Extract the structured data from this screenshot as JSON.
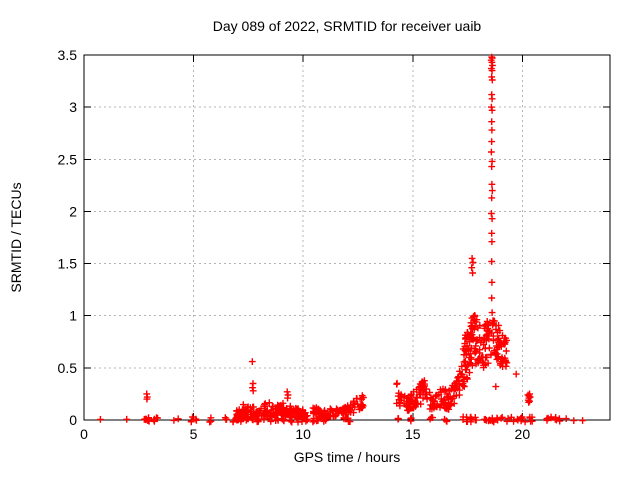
{
  "chart_data": {
    "type": "scatter",
    "title": "Day 089 of 2022, SRMTID for receiver uaib",
    "xlabel": "GPS time / hours",
    "ylabel": "SRMTID / TECUs",
    "xlim": [
      0,
      24
    ],
    "ylim": [
      0,
      3.5
    ],
    "x_ticks": [
      0,
      5,
      10,
      15,
      20
    ],
    "y_ticks": [
      0,
      0.5,
      1,
      1.5,
      2,
      2.5,
      3,
      3.5
    ],
    "grid": true,
    "legend": "none",
    "marker": {
      "shape": "plus",
      "color": "#ff0000",
      "size": 3.4,
      "stroke_width": 1.4
    },
    "colors": {
      "marker": "#ff0000",
      "grid": "#b4b4b4",
      "border": "#000000",
      "text": "#000000",
      "background": "#ffffff"
    },
    "seed": 11,
    "feature_points": [
      [
        2.86,
        0.25
      ],
      [
        2.89,
        0.22
      ],
      [
        2.87,
        0.2
      ],
      [
        7.68,
        0.56
      ],
      [
        7.71,
        0.35
      ],
      [
        7.69,
        0.31
      ],
      [
        7.72,
        0.28
      ],
      [
        9.27,
        0.27
      ],
      [
        9.31,
        0.24
      ],
      [
        9.29,
        0.21
      ],
      [
        17.71,
        1.55
      ],
      [
        17.75,
        1.51
      ],
      [
        17.69,
        1.46
      ],
      [
        17.73,
        1.41
      ],
      [
        17.49,
        0.84
      ],
      [
        17.52,
        0.82
      ],
      [
        17.5,
        0.8
      ],
      [
        18.6,
        3.48
      ],
      [
        18.63,
        3.47
      ],
      [
        18.58,
        3.45
      ],
      [
        18.61,
        3.43
      ],
      [
        18.64,
        3.4
      ],
      [
        18.59,
        3.37
      ],
      [
        18.62,
        3.35
      ],
      [
        18.6,
        3.29
      ],
      [
        18.63,
        3.26
      ],
      [
        18.6,
        3.12
      ],
      [
        18.62,
        3.08
      ],
      [
        18.59,
        3.0
      ],
      [
        18.62,
        2.97
      ],
      [
        18.6,
        2.86
      ],
      [
        18.61,
        2.78
      ],
      [
        18.6,
        2.67
      ],
      [
        18.59,
        2.57
      ],
      [
        18.62,
        2.48
      ],
      [
        18.6,
        2.43
      ],
      [
        18.61,
        2.26
      ],
      [
        18.63,
        2.2
      ],
      [
        18.6,
        2.13
      ],
      [
        18.59,
        1.98
      ],
      [
        18.62,
        1.93
      ],
      [
        18.6,
        1.79
      ],
      [
        18.61,
        1.71
      ],
      [
        18.6,
        1.52
      ],
      [
        18.61,
        1.32
      ],
      [
        18.6,
        1.17
      ],
      [
        18.62,
        1.03
      ],
      [
        18.79,
        0.32
      ],
      [
        19.72,
        0.44
      ],
      [
        20.26,
        0.24
      ],
      [
        20.3,
        0.21
      ],
      [
        20.33,
        0.18
      ],
      [
        20.36,
        0.22
      ],
      [
        20.29,
        0.17
      ],
      [
        20.33,
        0.25
      ],
      [
        20.27,
        0.19
      ],
      [
        20.31,
        0.23
      ]
    ],
    "zero_marks": [
      [
        0.75,
        1
      ],
      [
        1.95,
        1
      ],
      [
        2.8,
        4
      ],
      [
        2.95,
        4
      ],
      [
        3.2,
        3
      ],
      [
        3.32,
        2
      ],
      [
        4.1,
        1
      ],
      [
        4.3,
        1
      ],
      [
        4.92,
        3
      ],
      [
        5.1,
        2
      ],
      [
        5.75,
        3
      ],
      [
        6.5,
        3
      ],
      [
        6.78,
        2
      ],
      [
        6.98,
        4
      ],
      [
        7.2,
        4
      ],
      [
        7.45,
        4
      ],
      [
        7.7,
        4
      ],
      [
        7.95,
        4
      ],
      [
        8.2,
        4
      ],
      [
        8.5,
        4
      ],
      [
        8.8,
        4
      ],
      [
        9.1,
        4
      ],
      [
        9.45,
        4
      ],
      [
        9.75,
        4
      ],
      [
        10.0,
        4
      ],
      [
        10.18,
        3
      ],
      [
        10.5,
        4
      ],
      [
        10.62,
        3
      ],
      [
        11.0,
        3
      ],
      [
        11.9,
        4
      ],
      [
        12.1,
        4
      ],
      [
        14.3,
        3
      ],
      [
        14.95,
        3
      ],
      [
        15.85,
        3
      ],
      [
        16.5,
        3
      ],
      [
        17.25,
        2
      ],
      [
        17.5,
        4
      ],
      [
        17.68,
        4
      ],
      [
        17.9,
        3
      ],
      [
        18.3,
        4
      ],
      [
        18.5,
        3
      ],
      [
        18.68,
        3
      ],
      [
        18.85,
        3
      ],
      [
        19.05,
        2
      ],
      [
        19.35,
        2
      ],
      [
        19.55,
        2
      ],
      [
        19.75,
        2
      ],
      [
        19.95,
        3
      ],
      [
        20.1,
        2
      ],
      [
        20.35,
        3
      ],
      [
        20.5,
        2
      ],
      [
        21.15,
        3
      ],
      [
        21.3,
        2
      ],
      [
        21.55,
        3
      ],
      [
        21.7,
        2
      ],
      [
        22.0,
        1
      ],
      [
        22.35,
        1
      ],
      [
        22.75,
        1
      ]
    ],
    "clusters": [
      {
        "x0": 6.95,
        "x1": 10.2,
        "n": 170,
        "env": [
          [
            0,
            0.02,
            0.1
          ],
          [
            0.08,
            0.03,
            0.17
          ],
          [
            0.2,
            0.02,
            0.12
          ],
          [
            0.3,
            0.03,
            0.15
          ],
          [
            0.45,
            0.03,
            0.18
          ],
          [
            0.55,
            0.02,
            0.13
          ],
          [
            0.65,
            0.04,
            0.19
          ],
          [
            0.72,
            0.03,
            0.14
          ],
          [
            0.8,
            0.02,
            0.13
          ],
          [
            0.9,
            0.02,
            0.11
          ],
          [
            1,
            0.02,
            0.08
          ]
        ]
      },
      {
        "x0": 10.45,
        "x1": 12.75,
        "n": 95,
        "env": [
          [
            0,
            0.03,
            0.13
          ],
          [
            0.2,
            0.02,
            0.1
          ],
          [
            0.4,
            0.03,
            0.13
          ],
          [
            0.55,
            0.02,
            0.1
          ],
          [
            0.7,
            0.03,
            0.14
          ],
          [
            0.85,
            0.06,
            0.2
          ],
          [
            1,
            0.1,
            0.28
          ]
        ]
      },
      {
        "x0": 14.25,
        "x1": 15.05,
        "n": 45,
        "env": [
          [
            0,
            0.15,
            0.37
          ],
          [
            0.35,
            0.08,
            0.25
          ],
          [
            0.7,
            0.05,
            0.22
          ],
          [
            1,
            0.1,
            0.3
          ]
        ]
      },
      {
        "x0": 15.05,
        "x1": 15.95,
        "n": 42,
        "env": [
          [
            0,
            0.1,
            0.28
          ],
          [
            0.35,
            0.15,
            0.35
          ],
          [
            0.55,
            0.25,
            0.47
          ],
          [
            0.7,
            0.12,
            0.32
          ],
          [
            1,
            0.05,
            0.18
          ]
        ]
      },
      {
        "x0": 15.95,
        "x1": 16.65,
        "n": 40,
        "env": [
          [
            0,
            0.05,
            0.2
          ],
          [
            0.3,
            0.08,
            0.28
          ],
          [
            0.6,
            0.12,
            0.32
          ],
          [
            1,
            0.1,
            0.28
          ]
        ]
      },
      {
        "x0": 16.65,
        "x1": 17.28,
        "n": 32,
        "env": [
          [
            0,
            0.1,
            0.28
          ],
          [
            0.5,
            0.15,
            0.38
          ],
          [
            1,
            0.28,
            0.55
          ]
        ]
      },
      {
        "x0": 17.28,
        "x1": 17.62,
        "n": 42,
        "env": [
          [
            0,
            0.3,
            0.72
          ],
          [
            0.5,
            0.35,
            0.88
          ],
          [
            1,
            0.42,
            0.82
          ]
        ]
      },
      {
        "x0": 17.62,
        "x1": 18.45,
        "n": 75,
        "env": [
          [
            0,
            0.48,
            0.95
          ],
          [
            0.25,
            0.55,
            1.03
          ],
          [
            0.5,
            0.5,
            0.96
          ],
          [
            0.75,
            0.45,
            0.92
          ],
          [
            1,
            0.55,
            0.98
          ]
        ]
      },
      {
        "x0": 18.45,
        "x1": 19.3,
        "n": 60,
        "env": [
          [
            0,
            0.55,
            0.98
          ],
          [
            0.35,
            0.6,
            0.95
          ],
          [
            0.7,
            0.5,
            0.88
          ],
          [
            1,
            0.5,
            0.78
          ]
        ]
      }
    ]
  }
}
